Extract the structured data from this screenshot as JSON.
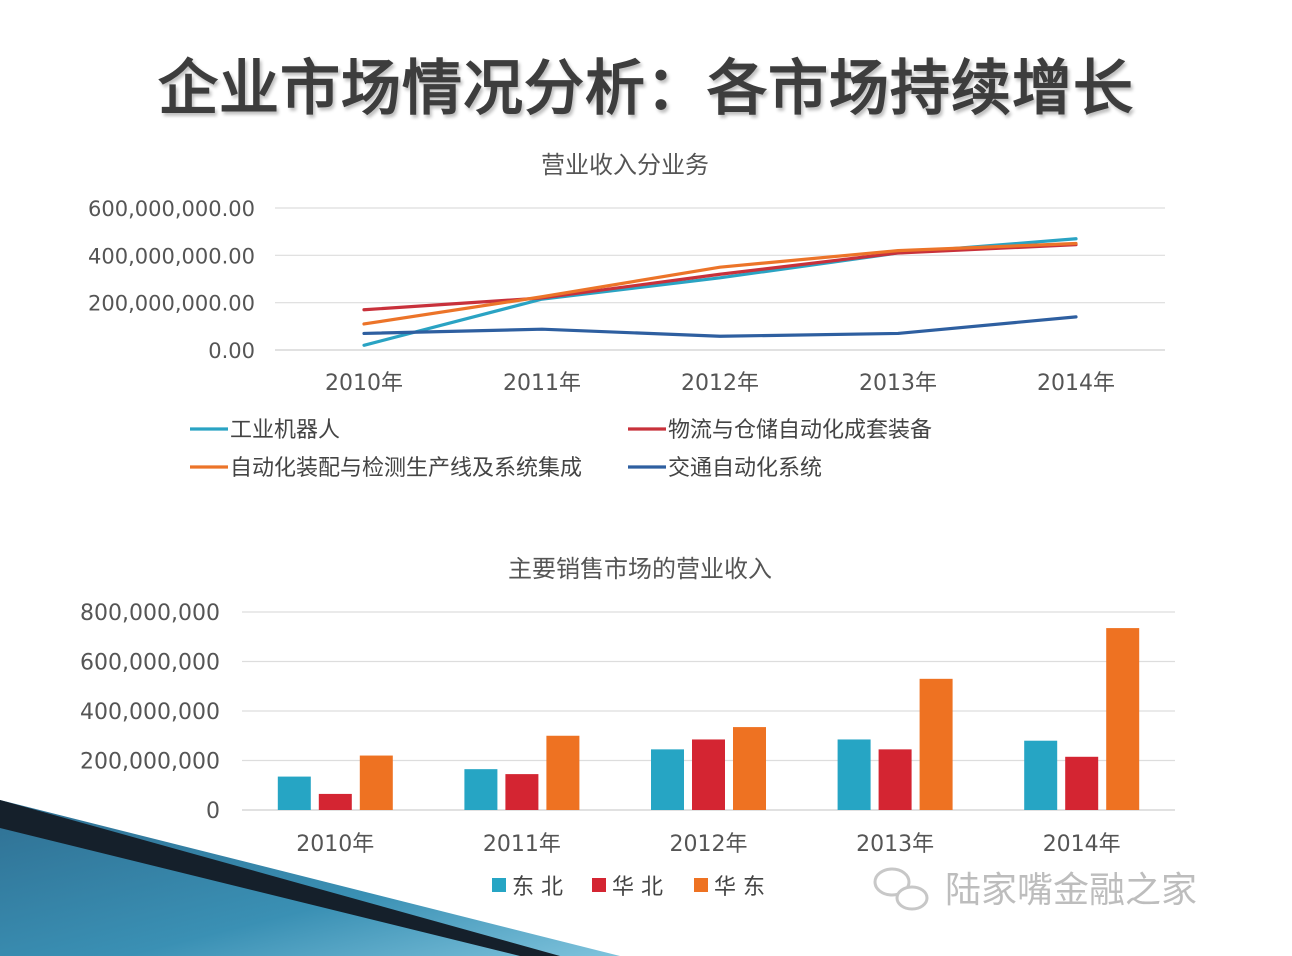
{
  "slide_title": "企业市场情况分析：各市场持续增长",
  "watermark": "陆家嘴金融之家",
  "colors": {
    "teal": "#2aa3c3",
    "red": "#c8313b",
    "orange": "#ec7429",
    "navy": "#2e5fa0",
    "bar_teal": "#26a5c4",
    "bar_red": "#d42532",
    "bar_orange": "#ee7222",
    "grid": "#dddddd",
    "axis_text": "#555555"
  },
  "chart_data": [
    {
      "type": "line",
      "title": "营业收入分业务",
      "categories": [
        "2010年",
        "2011年",
        "2012年",
        "2013年",
        "2014年"
      ],
      "y_tick_labels": [
        "0.00",
        "200,000,000.00",
        "400,000,000.00",
        "600,000,000.00"
      ],
      "ylim": [
        0,
        600000000
      ],
      "grid": true,
      "legend_position": "bottom",
      "series": [
        {
          "name": "工业机器人",
          "color": "#2aa3c3",
          "values": [
            20000000,
            215000000,
            305000000,
            410000000,
            470000000
          ]
        },
        {
          "name": "物流与仓储自动化成套装备",
          "color": "#c8313b",
          "values": [
            170000000,
            220000000,
            320000000,
            410000000,
            445000000
          ]
        },
        {
          "name": "自动化装配与检测生产线及系统集成",
          "color": "#ec7429",
          "values": [
            110000000,
            225000000,
            350000000,
            420000000,
            450000000
          ]
        },
        {
          "name": "交通自动化系统",
          "color": "#2e5fa0",
          "values": [
            70000000,
            88000000,
            58000000,
            70000000,
            140000000
          ]
        }
      ]
    },
    {
      "type": "bar",
      "title": "主要销售市场的营业收入",
      "categories": [
        "2010年",
        "2011年",
        "2012年",
        "2013年",
        "2014年"
      ],
      "y_tick_labels": [
        "0",
        "200,000,000",
        "400,000,000",
        "600,000,000",
        "800,000,000"
      ],
      "ylim": [
        0,
        800000000
      ],
      "grid": true,
      "legend_position": "bottom",
      "series": [
        {
          "name": "东 北",
          "color": "#26a5c4",
          "values": [
            135000000,
            165000000,
            245000000,
            285000000,
            280000000
          ]
        },
        {
          "name": "华 北",
          "color": "#d42532",
          "values": [
            65000000,
            145000000,
            285000000,
            245000000,
            215000000
          ]
        },
        {
          "name": "华 东",
          "color": "#ee7222",
          "values": [
            220000000,
            300000000,
            335000000,
            530000000,
            735000000
          ]
        }
      ]
    }
  ]
}
